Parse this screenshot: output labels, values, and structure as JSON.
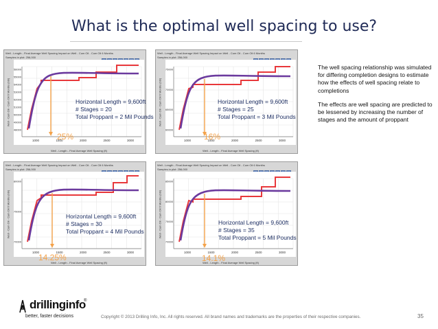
{
  "slide": {
    "title": "What is the optimal well spacing to use?",
    "page_number": "35",
    "copyright": "Copyright © 2013 Drilling Info, Inc. All rights reserved. All brand names and trademarks are the properties of their respective companies."
  },
  "sidebar_text": {
    "para1": "The well spacing relationship was simulated for differing completion designs to estimate how the effects of well spacing relate to completions",
    "para2": "The effects are well spacing are predicted to be lessened by increasing the number of stages and the amount of proppant"
  },
  "logo": {
    "name": "drillinginfo",
    "reg": "®",
    "tagline": "better, faster decisions"
  },
  "colors": {
    "title": "#1f2a56",
    "annotation": "#1e2f63",
    "purple_line": "#6b3a9e",
    "red_line": "#e8373a",
    "percent": "#f4a24a"
  },
  "panel_common": {
    "top_label": "Well - Length - Final Average Well Spacing Impact on Well - Cum Oil - Cum Oil 6 Months",
    "samples_label": "Samples in plot: 256,000",
    "ylabel": "Well - Cum Oil - Cum Oil 6 Months (bbl)",
    "xlabel": "Well - Length - Final Average Well Spacing (ft)",
    "x_ticks": [
      "1000",
      "1500",
      "2000",
      "2500",
      "3000"
    ]
  },
  "panels": [
    {
      "horizontal_length": "Horizontal Length = 9,600ft",
      "stages": "# Stages = 20",
      "proppant": "Total Proppant = 2 Mil Pounds",
      "percent": "25%",
      "y_ticks": [
        "56000",
        "55000",
        "54000",
        "53000",
        "52000",
        "51000",
        "50000",
        "49000",
        "48000"
      ]
    },
    {
      "horizontal_length": "Horizontal Length = 9,600ft",
      "stages": "# Stages = 25",
      "proppant": "Total Proppant = 3 Mil Pounds",
      "percent": "16%",
      "y_ticks": [
        "75000",
        "70000",
        "65000",
        "60000"
      ]
    },
    {
      "horizontal_length": "Horizontal Length = 9,600ft",
      "stages": "# Stages = 30",
      "proppant": "Total Proppant = 4 Mil Pounds",
      "percent": "14.25%",
      "y_ticks": [
        "80000",
        "75000",
        "70000"
      ]
    },
    {
      "horizontal_length": "Horizontal Length = 9,600ft",
      "stages": "# Stages = 35",
      "proppant": "Total Proppant = 5 Mil Pounds",
      "percent": "14.1%",
      "y_ticks": [
        "85000",
        "80000",
        "75000",
        "70000"
      ]
    }
  ]
}
